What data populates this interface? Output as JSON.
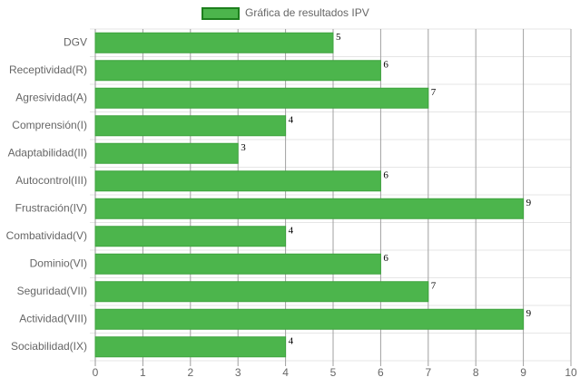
{
  "chart_data": {
    "type": "bar",
    "orientation": "horizontal",
    "categories": [
      "DGV",
      "Receptividad(R)",
      "Agresividad(A)",
      "Comprensión(I)",
      "Adaptabilidad(II)",
      "Autocontrol(III)",
      "Frustración(IV)",
      "Combatividad(V)",
      "Dominio(VI)",
      "Seguridad(VII)",
      "Actividad(VIII)",
      "Sociabilidad(IX)"
    ],
    "series": [
      {
        "name": "Gráfica de resultados IPV",
        "color": "#4cb54c",
        "values": [
          5,
          6,
          7,
          4,
          3,
          6,
          9,
          4,
          6,
          7,
          9,
          4
        ]
      }
    ],
    "xlim": [
      0,
      10
    ],
    "xticks": [
      0,
      1,
      2,
      3,
      4,
      5,
      6,
      7,
      8,
      9,
      10
    ],
    "grid": true,
    "legend": "top"
  }
}
